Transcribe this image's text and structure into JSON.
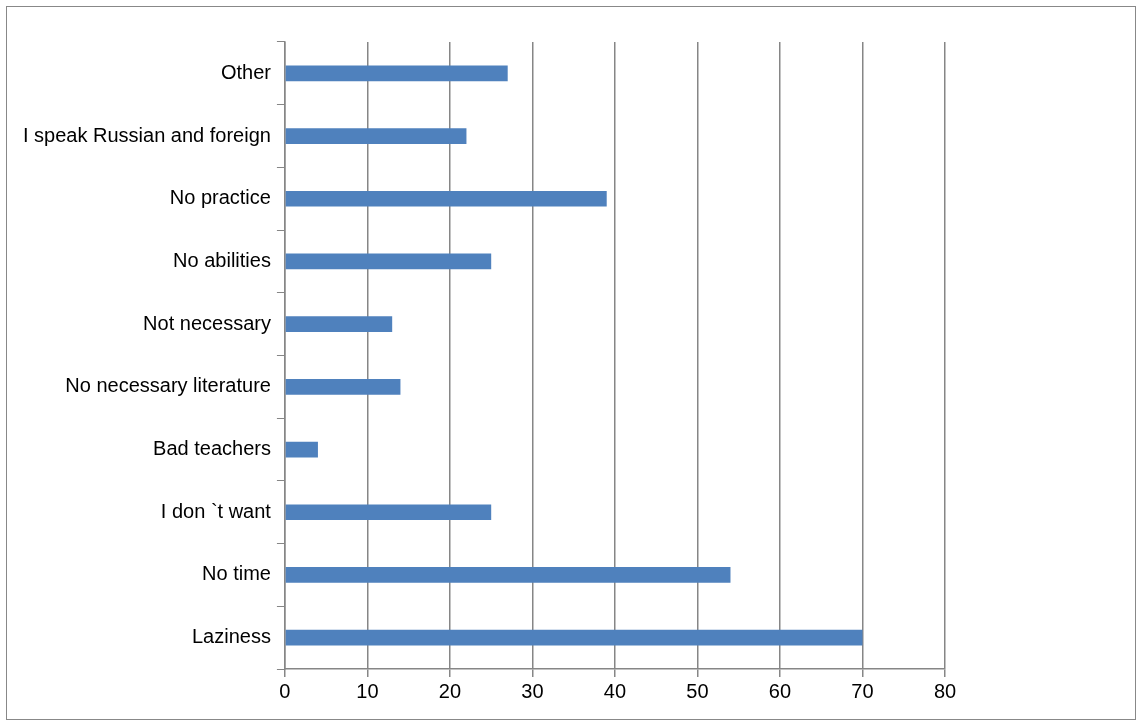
{
  "chart_data": {
    "type": "bar",
    "orientation": "horizontal",
    "categories": [
      "Other",
      "I speak Russian and foreign",
      "No practice",
      "No abilities",
      "Not necessary",
      "No necessary literature",
      "Bad teachers",
      "I don `t want",
      "No time",
      "Laziness"
    ],
    "values": [
      27,
      22,
      39,
      25,
      13,
      14,
      4,
      25,
      54,
      70
    ],
    "color": "#4f81bd",
    "xlim": [
      0,
      80
    ],
    "xticks": [
      0,
      10,
      20,
      30,
      40,
      50,
      60,
      70,
      80
    ],
    "grid": "x",
    "legend": false
  }
}
